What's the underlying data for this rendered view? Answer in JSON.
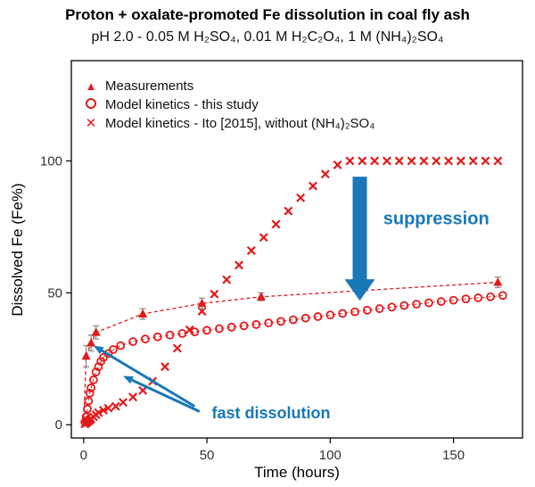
{
  "colors": {
    "red": "#e31a1c",
    "blue": "#1878b8",
    "error_bar": "#8a8a8a",
    "axis": "#000000",
    "tick_label": "#333333"
  },
  "icons": {
    "triangle_marker": "▲",
    "x_marker": "✕"
  },
  "chart_data": {
    "type": "scatter",
    "title": "Proton + oxalate-promoted Fe dissolution in coal fly ash",
    "subtitle": "pH 2.0 - 0.05 M H₂SO₄, 0.01 M H₂C₂O₄, 1 M (NH₄)₂SO₄",
    "xlabel": "Time (hours)",
    "ylabel": "Dissolved Fe (Fe%)",
    "xlim": [
      -5,
      178
    ],
    "ylim": [
      -5,
      138
    ],
    "xticks": [
      0,
      50,
      100,
      150
    ],
    "yticks": [
      0,
      50,
      100
    ],
    "grid": false,
    "legend_position": "top-left-inside",
    "series": [
      {
        "id": "measurements",
        "name": "Measurements",
        "marker": "triangle",
        "color": "#e31a1c",
        "line": "dashed",
        "line_from_origin": true,
        "x": [
          1,
          3,
          5,
          24,
          48,
          72,
          168
        ],
        "y": [
          26,
          31,
          35,
          42,
          46,
          48.5,
          54
        ],
        "yerr": [
          4,
          3,
          2.5,
          2,
          2,
          1.5,
          2
        ]
      },
      {
        "id": "model-this-study",
        "name": "Model kinetics - this study",
        "marker": "open-circle",
        "color": "#e31a1c",
        "line": "dashed-thin",
        "line_from_origin": true,
        "x": [
          0.5,
          1,
          1.5,
          2,
          2.5,
          3,
          4,
          5,
          6,
          7,
          8,
          10,
          12,
          15,
          20,
          25,
          30,
          35,
          40,
          45,
          50,
          55,
          60,
          65,
          70,
          75,
          80,
          85,
          90,
          95,
          100,
          105,
          110,
          115,
          120,
          125,
          130,
          135,
          140,
          145,
          150,
          155,
          160,
          165,
          170
        ],
        "y": [
          1,
          3,
          6,
          9,
          12,
          14,
          17,
          20,
          22,
          24,
          25.5,
          27,
          28.5,
          30,
          31.5,
          32.5,
          33.3,
          34,
          34.6,
          35.2,
          35.8,
          36.4,
          37,
          37.5,
          38,
          38.6,
          39.2,
          39.8,
          40.4,
          41,
          41.6,
          42.2,
          42.8,
          43.4,
          44,
          44.6,
          45.2,
          45.7,
          46.2,
          46.7,
          47.2,
          47.7,
          48.1,
          48.5,
          49
        ]
      },
      {
        "id": "model-ito-2015",
        "name": "Model kinetics - Ito [2015], without (NH₄)₂SO₄",
        "marker": "x",
        "color": "#e31a1c",
        "line": "none",
        "x": [
          0.5,
          1,
          1.5,
          2,
          2.5,
          3,
          4,
          5,
          6,
          8,
          10,
          13,
          16,
          20,
          24,
          28,
          33,
          38,
          43,
          48,
          53,
          58,
          63,
          68,
          73,
          78,
          83,
          88,
          93,
          98,
          103,
          108,
          113,
          118,
          123,
          128,
          133,
          138,
          143,
          148,
          153,
          158,
          163,
          168
        ],
        "y": [
          0.3,
          0.6,
          1,
          1.4,
          1.8,
          2.2,
          3,
          3.8,
          4.6,
          5.5,
          6.3,
          7,
          8.5,
          10.5,
          13,
          16.5,
          22,
          29,
          36,
          43,
          49.5,
          55,
          60.5,
          66,
          71,
          76,
          81,
          86,
          90.5,
          95,
          98.5,
          100,
          100,
          100,
          100,
          100,
          100,
          100,
          100,
          100,
          100,
          100,
          100,
          100
        ]
      }
    ],
    "annotations": [
      {
        "id": "suppression",
        "text": "suppression",
        "x": 143,
        "y": 76,
        "font_size": 20
      },
      {
        "id": "fast-dissolution",
        "text": "fast dissolution",
        "x": 76,
        "y": 2.5,
        "font_size": 18
      }
    ],
    "arrows": [
      {
        "id": "suppression-arrow",
        "style": "block",
        "from": [
          112,
          94
        ],
        "to": [
          112,
          47
        ]
      },
      {
        "id": "fast-dissolution-arrow-upper",
        "style": "thin",
        "from": [
          45,
          7
        ],
        "to": [
          4,
          30
        ]
      },
      {
        "id": "fast-dissolution-arrow-lower",
        "style": "thin",
        "from": [
          47,
          5
        ],
        "to": [
          16,
          18.5
        ]
      }
    ]
  }
}
